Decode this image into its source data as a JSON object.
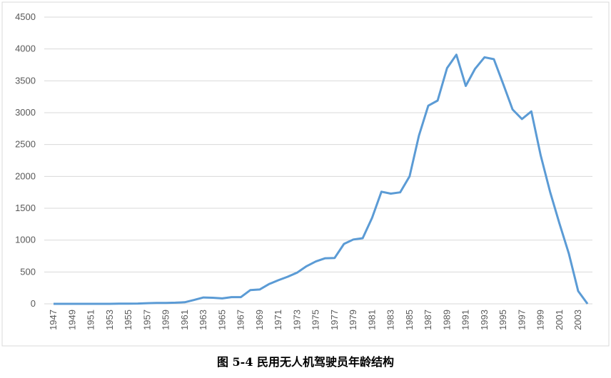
{
  "chart_data": {
    "type": "line",
    "caption": "图 5-4 民用无人机驾驶员年龄结构",
    "categories": [
      "1947",
      null,
      "1949",
      null,
      "1951",
      null,
      "1953",
      null,
      "1955",
      null,
      "1957",
      null,
      "1959",
      null,
      "1961",
      null,
      "1963",
      null,
      "1965",
      null,
      "1967",
      null,
      "1969",
      null,
      "1971",
      null,
      "1973",
      null,
      "1975",
      null,
      "1977",
      null,
      "1979",
      null,
      "1981",
      null,
      "1983",
      null,
      "1985",
      null,
      "1987",
      null,
      "1989",
      null,
      "1991",
      null,
      "1993",
      null,
      "1995",
      null,
      "1997",
      null,
      "1999",
      null,
      "2001",
      null,
      "2003",
      null
    ],
    "values": [
      0,
      0,
      0,
      0,
      0,
      0,
      0,
      2,
      3,
      5,
      10,
      15,
      15,
      18,
      25,
      60,
      100,
      95,
      85,
      105,
      105,
      215,
      225,
      310,
      370,
      425,
      490,
      590,
      665,
      715,
      720,
      940,
      1010,
      1030,
      1350,
      1760,
      1730,
      1750,
      2000,
      2640,
      3110,
      3190,
      3700,
      3910,
      3420,
      3690,
      3870,
      3840,
      3450,
      3050,
      2900,
      3020,
      2330,
      1760,
      1260,
      790,
      200,
      0
    ],
    "color": "#5b9bd5",
    "ylim": [
      0,
      4500
    ],
    "yticks": [
      0,
      500,
      1000,
      1500,
      2000,
      2500,
      3000,
      3500,
      4000,
      4500
    ],
    "grid": true
  }
}
